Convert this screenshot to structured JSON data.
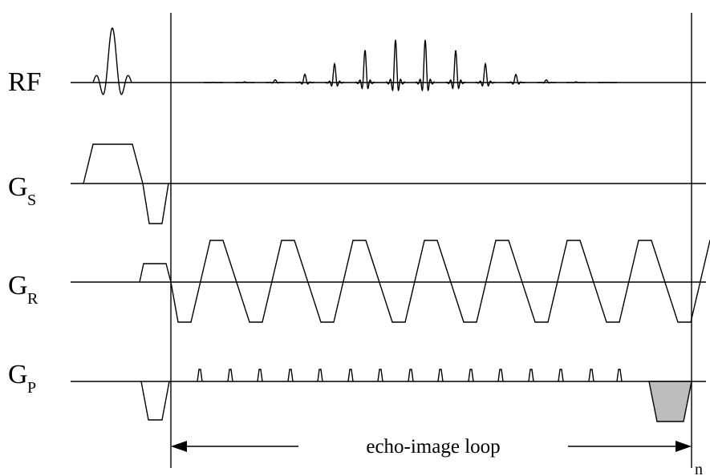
{
  "labels": {
    "rf": "RF",
    "gs_main": "G",
    "gs_sub": "S",
    "gr_main": "G",
    "gr_sub": "R",
    "gp_main": "G",
    "gp_sub": "P"
  },
  "loop_label": "echo-image loop",
  "repeat_label": "n",
  "colors": {
    "line": "#000000",
    "shaded_lobe": "#bdbdbd"
  }
}
